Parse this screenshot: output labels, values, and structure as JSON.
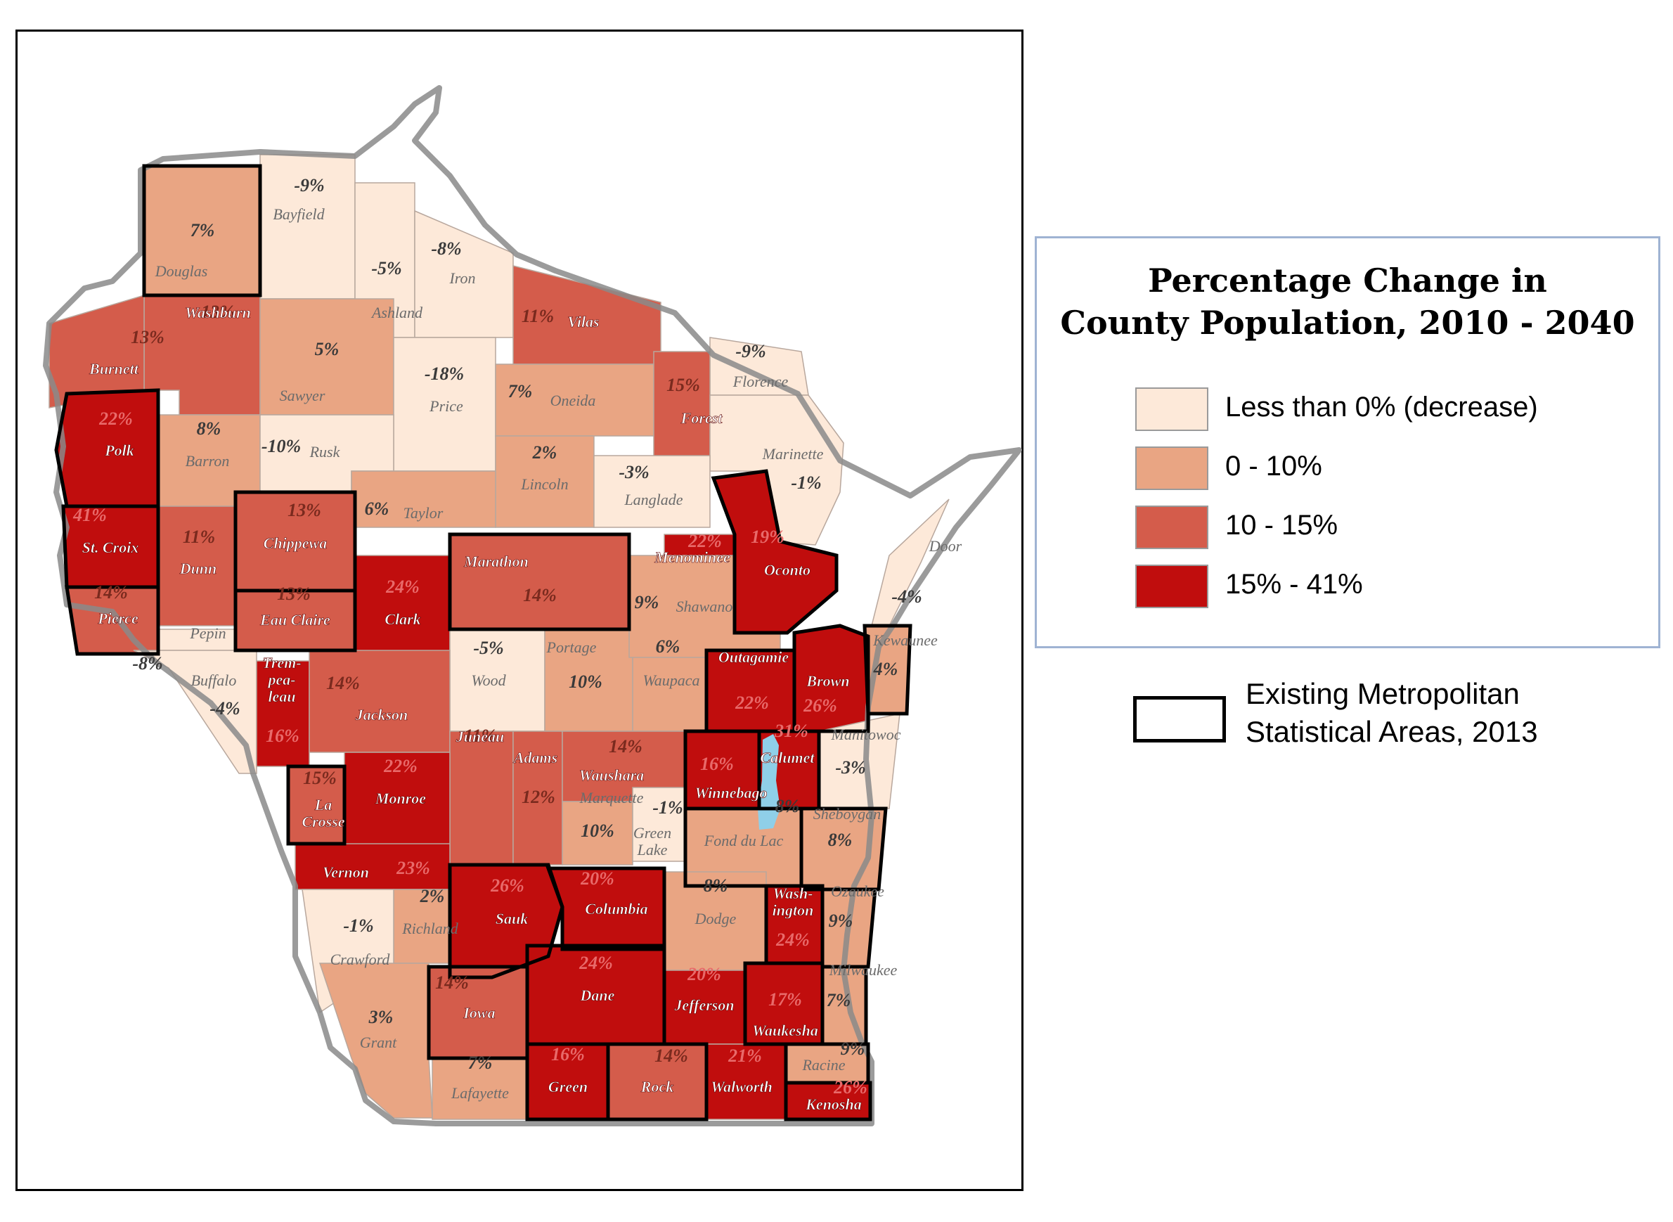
{
  "map": {
    "title_line1": "Percentage Change in",
    "title_line2": "County Population, 2010 - 2040",
    "colors": {
      "decrease": "#fde9d9",
      "low": "#e9a583",
      "mid": "#d45c4b",
      "high": "#c00d0d",
      "lake": "#8fcfe8"
    },
    "legend": [
      {
        "label": "Less than 0% (decrease)",
        "class": "decrease"
      },
      {
        "label": "0 - 10%",
        "class": "low"
      },
      {
        "label": "10 - 15%",
        "class": "mid"
      },
      {
        "label": "15% - 41%",
        "class": "high"
      }
    ],
    "msa_legend": {
      "line1": "Existing Metropolitan",
      "line2": "Statistical Areas, 2013"
    },
    "counties": [
      {
        "name": "Douglas",
        "pct": "7%",
        "class": "low"
      },
      {
        "name": "Bayfield",
        "pct": "-9%",
        "class": "decrease"
      },
      {
        "name": "Ashland",
        "pct": "-5%",
        "class": "decrease"
      },
      {
        "name": "Iron",
        "pct": "-8%",
        "class": "decrease"
      },
      {
        "name": "Vilas",
        "pct": "11%",
        "class": "mid"
      },
      {
        "name": "Florence",
        "pct": "-9%",
        "class": "decrease"
      },
      {
        "name": "Washburn",
        "pct": "13%",
        "class": "mid"
      },
      {
        "name": "Burnett",
        "pct": "13%",
        "class": "mid"
      },
      {
        "name": "Sawyer",
        "pct": "5%",
        "class": "low"
      },
      {
        "name": "Price",
        "pct": "-18%",
        "class": "decrease"
      },
      {
        "name": "Oneida",
        "pct": "7%",
        "class": "low"
      },
      {
        "name": "Forest",
        "pct": "15%",
        "class": "mid"
      },
      {
        "name": "Marinette",
        "pct": "-1%",
        "class": "decrease"
      },
      {
        "name": "Polk",
        "pct": "22%",
        "class": "high"
      },
      {
        "name": "Barron",
        "pct": "8%",
        "class": "low"
      },
      {
        "name": "Rusk",
        "pct": "-10%",
        "class": "decrease"
      },
      {
        "name": "Lincoln",
        "pct": "2%",
        "class": "low"
      },
      {
        "name": "Langlade",
        "pct": "-3%",
        "class": "decrease"
      },
      {
        "name": "Taylor",
        "pct": "6%",
        "class": "low"
      },
      {
        "name": "St. Croix",
        "pct": "41%",
        "class": "high"
      },
      {
        "name": "Dunn",
        "pct": "11%",
        "class": "mid"
      },
      {
        "name": "Chippewa",
        "pct": "13%",
        "class": "mid"
      },
      {
        "name": "Eau Claire",
        "pct": "13%",
        "class": "mid"
      },
      {
        "name": "Clark",
        "pct": "24%",
        "class": "high"
      },
      {
        "name": "Marathon",
        "pct": "14%",
        "class": "mid"
      },
      {
        "name": "Menominee",
        "pct": "22%",
        "class": "high"
      },
      {
        "name": "Oconto",
        "pct": "19%",
        "class": "high"
      },
      {
        "name": "Door",
        "pct": "-4%",
        "class": "decrease"
      },
      {
        "name": "Pierce",
        "pct": "14%",
        "class": "mid"
      },
      {
        "name": "Pepin",
        "pct": "-8%",
        "class": "decrease"
      },
      {
        "name": "Buffalo",
        "pct": "-4%",
        "class": "decrease"
      },
      {
        "name": "Wood",
        "pct": "-5%",
        "class": "decrease"
      },
      {
        "name": "Portage",
        "pct": "10%",
        "class": "low"
      },
      {
        "name": "Waupaca",
        "pct": "6%",
        "class": "low"
      },
      {
        "name": "Shawano",
        "pct": "9%",
        "class": "low"
      },
      {
        "name": "Outagamie",
        "pct": "22%",
        "class": "high"
      },
      {
        "name": "Brown",
        "pct": "26%",
        "class": "high"
      },
      {
        "name": "Kewaunee",
        "pct": "4%",
        "class": "low"
      },
      {
        "name": "Trempealeau",
        "label": [
          "Trem-",
          "pea-",
          "leau"
        ],
        "pct": "16%",
        "class": "high"
      },
      {
        "name": "Jackson",
        "pct": "14%",
        "class": "mid"
      },
      {
        "name": "Juneau",
        "pct": "11%",
        "class": "mid"
      },
      {
        "name": "Adams",
        "pct": "12%",
        "class": "mid"
      },
      {
        "name": "Waushara",
        "pct": "14%",
        "class": "mid"
      },
      {
        "name": "Marquette",
        "pct": "10%",
        "class": "low"
      },
      {
        "name": "Green Lake",
        "label": [
          "Green",
          "Lake"
        ],
        "pct": "-1%",
        "class": "decrease"
      },
      {
        "name": "Winnebago",
        "pct": "16%",
        "class": "high"
      },
      {
        "name": "Calumet",
        "pct": "31%",
        "class": "high"
      },
      {
        "name": "Manitowoc",
        "pct": "-3%",
        "class": "decrease"
      },
      {
        "name": "La Crosse",
        "label": [
          "La",
          "Crosse"
        ],
        "pct": "15%",
        "class": "mid"
      },
      {
        "name": "Monroe",
        "pct": "22%",
        "class": "high"
      },
      {
        "name": "Fond du Lac",
        "pct": "8%",
        "class": "low"
      },
      {
        "name": "Sheboygan",
        "pct": "8%",
        "class": "low"
      },
      {
        "name": "Vernon",
        "pct": "23%",
        "class": "high"
      },
      {
        "name": "Richland",
        "pct": "2%",
        "class": "low"
      },
      {
        "name": "Sauk",
        "pct": "26%",
        "class": "high"
      },
      {
        "name": "Columbia",
        "pct": "20%",
        "class": "high"
      },
      {
        "name": "Dodge",
        "pct": "8%",
        "class": "low"
      },
      {
        "name": "Washington",
        "label": [
          "Wash-",
          "ington"
        ],
        "pct": "24%",
        "class": "high"
      },
      {
        "name": "Ozaukee",
        "pct": "9%",
        "class": "low"
      },
      {
        "name": "Crawford",
        "pct": "-1%",
        "class": "decrease"
      },
      {
        "name": "Grant",
        "pct": "3%",
        "class": "low"
      },
      {
        "name": "Iowa",
        "pct": "14%",
        "class": "mid"
      },
      {
        "name": "Dane",
        "pct": "24%",
        "class": "high"
      },
      {
        "name": "Jefferson",
        "pct": "20%",
        "class": "high"
      },
      {
        "name": "Waukesha",
        "pct": "17%",
        "class": "high"
      },
      {
        "name": "Milwaukee",
        "pct": "7%",
        "class": "low"
      },
      {
        "name": "Lafayette",
        "pct": "7%",
        "class": "low"
      },
      {
        "name": "Green",
        "pct": "16%",
        "class": "high"
      },
      {
        "name": "Rock",
        "pct": "14%",
        "class": "mid"
      },
      {
        "name": "Walworth",
        "pct": "21%",
        "class": "high"
      },
      {
        "name": "Racine",
        "pct": "9%",
        "class": "low"
      },
      {
        "name": "Kenosha",
        "pct": "26%",
        "class": "high"
      }
    ]
  }
}
